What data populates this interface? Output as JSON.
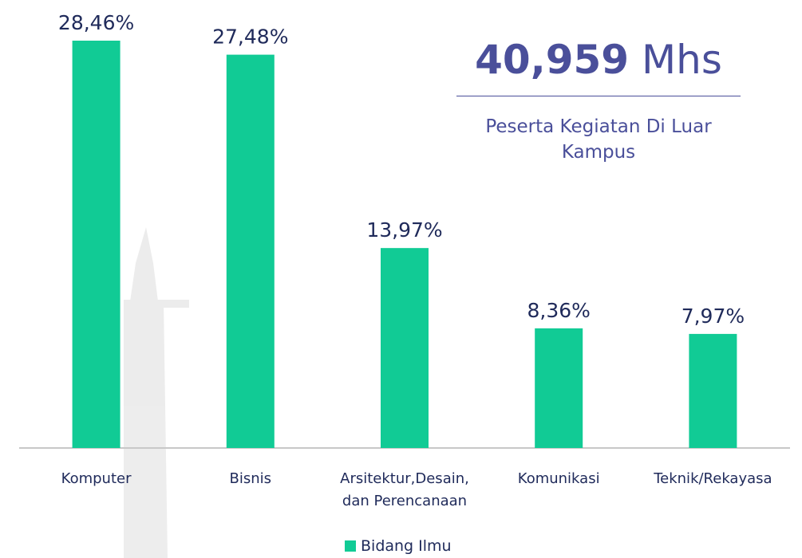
{
  "chart_data": {
    "type": "bar",
    "categories": [
      "Komputer",
      "Bisnis",
      "Arsitektur,Desain, dan Perencanaan",
      "Komunikasi",
      "Teknik/Rekayasa"
    ],
    "series": [
      {
        "name": "Bidang Ilmu",
        "color": "#11cb95",
        "values": [
          28.46,
          27.48,
          13.97,
          8.36,
          7.97
        ],
        "value_labels": [
          "28,46%",
          "27,48%",
          "13,97%",
          "8,36%",
          "7,97%"
        ]
      }
    ],
    "kpi": {
      "value": "40,959",
      "unit": "Mhs",
      "label": "Peserta Kegiatan Di Luar Kampus"
    }
  }
}
